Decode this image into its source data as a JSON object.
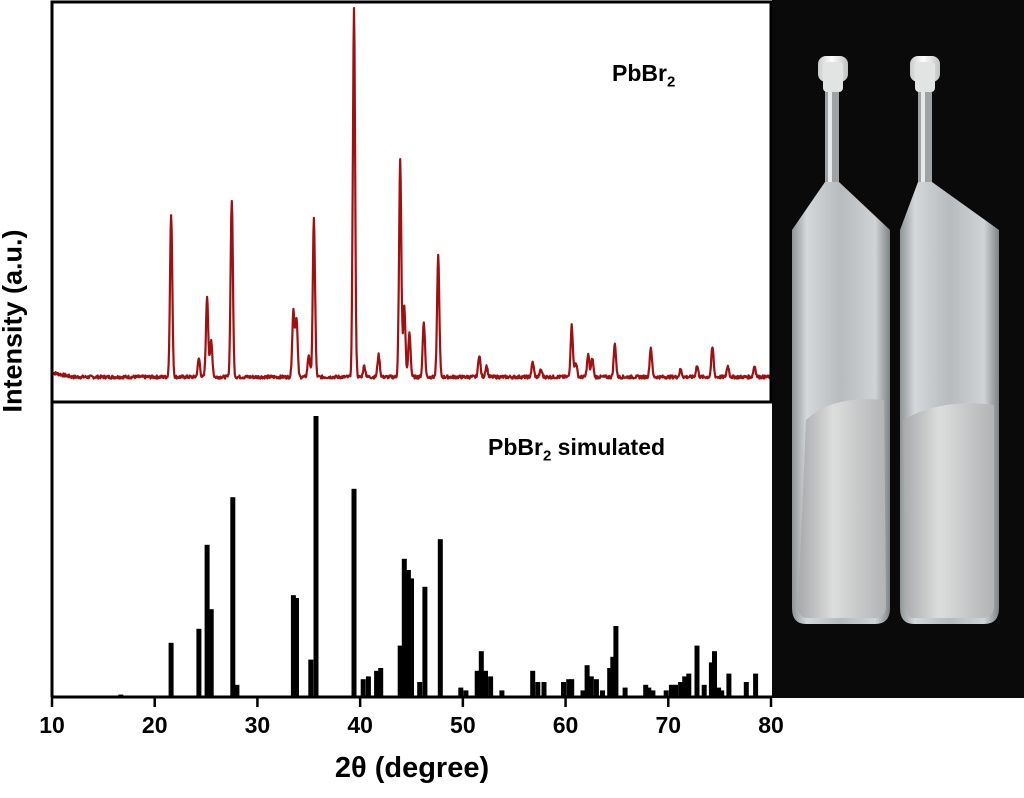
{
  "figure": {
    "ylabel": "Intensity (a.u.)",
    "xlabel": "2θ (degree)"
  },
  "chart_data": [
    {
      "type": "line",
      "title": "PbBr",
      "title_sub": "2",
      "color": "#a01010",
      "xlim": [
        10,
        80
      ],
      "ylim": [
        0,
        100
      ],
      "xticks": [
        10,
        20,
        30,
        40,
        50,
        60,
        70,
        80
      ],
      "baseline": 2,
      "peaks": [
        [
          21.6,
          44
        ],
        [
          24.3,
          5
        ],
        [
          25.1,
          22
        ],
        [
          25.5,
          10
        ],
        [
          27.5,
          48
        ],
        [
          33.5,
          18
        ],
        [
          33.8,
          16
        ],
        [
          35.0,
          6
        ],
        [
          35.5,
          43
        ],
        [
          39.4,
          100
        ],
        [
          40.4,
          3
        ],
        [
          41.8,
          6
        ],
        [
          43.9,
          59
        ],
        [
          44.3,
          19
        ],
        [
          44.8,
          12
        ],
        [
          46.2,
          15
        ],
        [
          47.6,
          33
        ],
        [
          51.6,
          6
        ],
        [
          52.3,
          3
        ],
        [
          56.8,
          4
        ],
        [
          57.6,
          2
        ],
        [
          60.6,
          14
        ],
        [
          61.0,
          4
        ],
        [
          62.2,
          6
        ],
        [
          62.6,
          5
        ],
        [
          64.8,
          9
        ],
        [
          68.3,
          8
        ],
        [
          71.2,
          2
        ],
        [
          72.8,
          3
        ],
        [
          74.3,
          8
        ],
        [
          75.8,
          3
        ],
        [
          78.4,
          3
        ]
      ]
    },
    {
      "type": "bar",
      "title": "PbBr",
      "title_sub": "2",
      "title_suffix": " simulated",
      "color": "#000000",
      "xlim": [
        10,
        80
      ],
      "ylim": [
        0,
        100
      ],
      "x": [
        16.7,
        21.6,
        24.3,
        25.1,
        25.5,
        27.6,
        28.0,
        33.5,
        33.8,
        35.2,
        35.7,
        39.4,
        40.3,
        40.8,
        41.6,
        42.0,
        43.9,
        44.3,
        44.7,
        45.0,
        45.8,
        46.3,
        47.8,
        49.8,
        50.3,
        51.4,
        51.8,
        52.2,
        52.7,
        53.8,
        56.8,
        57.3,
        57.9,
        59.8,
        60.3,
        60.6,
        61.7,
        62.1,
        62.5,
        63.0,
        63.6,
        64.3,
        64.6,
        64.9,
        65.8,
        67.8,
        68.1,
        68.5,
        69.8,
        70.3,
        70.7,
        71.2,
        71.6,
        72.0,
        72.8,
        73.5,
        74.2,
        74.5,
        74.9,
        75.2,
        75.9,
        77.6,
        78.5
      ],
      "values": [
        0.5,
        19,
        24,
        54,
        31,
        71,
        4,
        36,
        35,
        13,
        100,
        74,
        6,
        7,
        9,
        10,
        18,
        49,
        45,
        42,
        5,
        39,
        56,
        3,
        2,
        9,
        16,
        9,
        7,
        2,
        9,
        5,
        5,
        5,
        6,
        6,
        2,
        11,
        7,
        6,
        2,
        10,
        14,
        25,
        3,
        4,
        3,
        2,
        2,
        4,
        4,
        5,
        7,
        8,
        18,
        4,
        12,
        16,
        3,
        2,
        8,
        5,
        8
      ]
    }
  ],
  "photo": {
    "alt": "photograph of two sealed glass ampoules with white caps, half filled with white PbBr2 powder"
  }
}
